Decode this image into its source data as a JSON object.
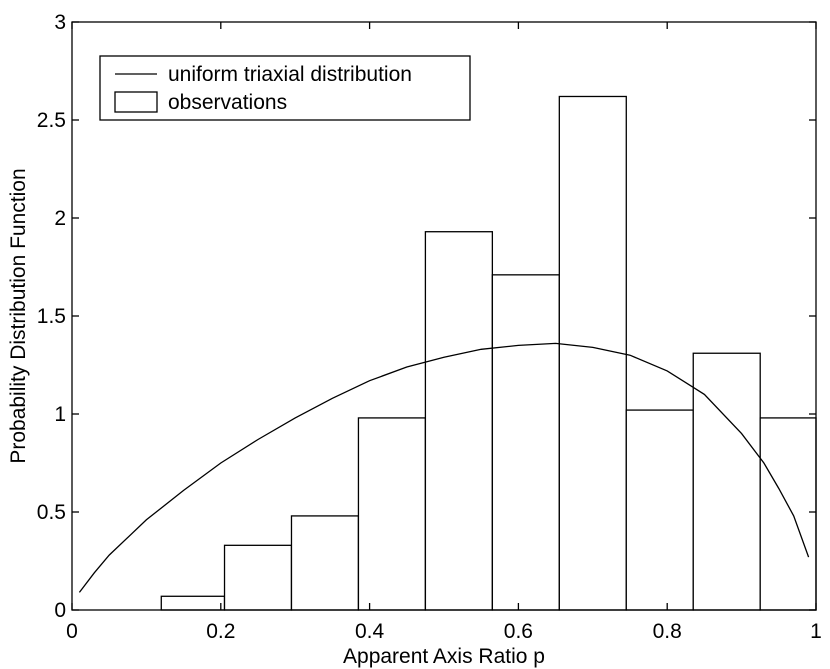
{
  "chart_data": {
    "type": "bar",
    "xlabel": "Apparent Axis Ratio p",
    "ylabel": "Probability Distribution Function",
    "xlim": [
      0,
      1
    ],
    "ylim": [
      0,
      3
    ],
    "xticks": [
      "0",
      "0.2",
      "0.4",
      "0.6",
      "0.8",
      "1"
    ],
    "xtick_values": [
      0,
      0.2,
      0.4,
      0.6,
      0.8,
      1
    ],
    "yticks": [
      "0",
      "0.5",
      "1",
      "1.5",
      "2",
      "2.5",
      "3"
    ],
    "ytick_values": [
      0,
      0.5,
      1,
      1.5,
      2,
      2.5,
      3
    ],
    "grid": false,
    "legend_position": "top-left",
    "legend": [
      {
        "label": "uniform triaxial distribution",
        "kind": "line"
      },
      {
        "label": "observations",
        "kind": "box"
      }
    ],
    "histogram": {
      "name": "observations",
      "bins": [
        {
          "x0": 0.12,
          "x1": 0.205,
          "value": 0.07
        },
        {
          "x0": 0.205,
          "x1": 0.295,
          "value": 0.33
        },
        {
          "x0": 0.295,
          "x1": 0.385,
          "value": 0.48
        },
        {
          "x0": 0.385,
          "x1": 0.475,
          "value": 0.98
        },
        {
          "x0": 0.475,
          "x1": 0.565,
          "value": 1.93
        },
        {
          "x0": 0.565,
          "x1": 0.655,
          "value": 1.71
        },
        {
          "x0": 0.655,
          "x1": 0.745,
          "value": 2.62
        },
        {
          "x0": 0.745,
          "x1": 0.835,
          "value": 1.02
        },
        {
          "x0": 0.835,
          "x1": 0.925,
          "value": 1.31
        },
        {
          "x0": 0.925,
          "x1": 1.0,
          "value": 0.98
        }
      ]
    },
    "curve": {
      "name": "uniform triaxial distribution",
      "x": [
        0.01,
        0.03,
        0.05,
        0.1,
        0.15,
        0.2,
        0.25,
        0.3,
        0.35,
        0.4,
        0.45,
        0.5,
        0.55,
        0.6,
        0.65,
        0.7,
        0.75,
        0.8,
        0.85,
        0.9,
        0.93,
        0.95,
        0.97,
        0.99
      ],
      "y": [
        0.09,
        0.19,
        0.28,
        0.46,
        0.61,
        0.75,
        0.87,
        0.98,
        1.08,
        1.17,
        1.24,
        1.29,
        1.33,
        1.35,
        1.36,
        1.34,
        1.3,
        1.22,
        1.1,
        0.9,
        0.75,
        0.62,
        0.48,
        0.27
      ]
    }
  }
}
